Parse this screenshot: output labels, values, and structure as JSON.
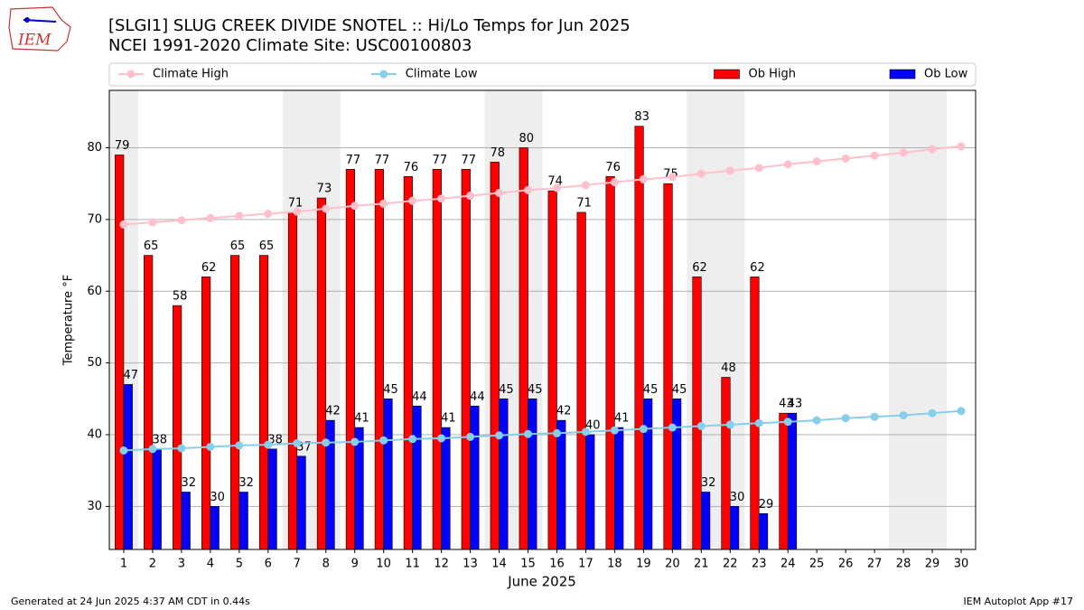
{
  "chart_data": {
    "type": "bar",
    "title": "[SLGI1] SLUG CREEK DIVIDE SNOTEL :: Hi/Lo Temps for Jun 2025",
    "subtitle": "NCEI 1991-2020 Climate Site: USC00100803",
    "x_label": "June 2025",
    "y_label": "Temperature °F",
    "footer_left": "Generated at 24 Jun 2025 4:37 AM CDT in 0.44s",
    "footer_right": "IEM Autoplot App #17",
    "logo": "IEM",
    "categories": [
      "1",
      "2",
      "3",
      "4",
      "5",
      "6",
      "7",
      "8",
      "9",
      "10",
      "11",
      "12",
      "13",
      "14",
      "15",
      "16",
      "17",
      "18",
      "19",
      "20",
      "21",
      "22",
      "23",
      "24",
      "25",
      "26",
      "27",
      "28",
      "29",
      "30"
    ],
    "shaded_categories": [
      0,
      6,
      7,
      13,
      14,
      20,
      21,
      27,
      28
    ],
    "shade_color": "#eeeeee",
    "ylim": [
      24,
      88
    ],
    "yticks": [
      30,
      40,
      50,
      60,
      70,
      80
    ],
    "grid": true,
    "legend": "top",
    "series": [
      {
        "name": "Climate High",
        "type": "line",
        "color": "#ffc0cb",
        "values": [
          69.3,
          69.6,
          69.9,
          70.2,
          70.5,
          70.8,
          71.1,
          71.5,
          71.9,
          72.2,
          72.6,
          72.9,
          73.3,
          73.7,
          74.1,
          74.4,
          74.8,
          75.2,
          75.6,
          75.9,
          76.4,
          76.8,
          77.2,
          77.7,
          78.1,
          78.5,
          78.9,
          79.3,
          79.8,
          80.2
        ]
      },
      {
        "name": "Climate Low",
        "type": "line",
        "color": "#87ceeb",
        "values": [
          37.8,
          38.0,
          38.1,
          38.3,
          38.5,
          38.6,
          38.8,
          38.9,
          39.0,
          39.2,
          39.4,
          39.5,
          39.7,
          39.9,
          40.1,
          40.2,
          40.4,
          40.6,
          40.8,
          41.0,
          41.2,
          41.4,
          41.6,
          41.8,
          42.0,
          42.3,
          42.5,
          42.7,
          43.0,
          43.3
        ]
      },
      {
        "name": "Ob High",
        "type": "bar",
        "color": "#ff0000",
        "values": [
          79,
          65,
          58,
          62,
          65,
          65,
          71,
          73,
          77,
          77,
          76,
          77,
          77,
          78,
          80,
          74,
          71,
          76,
          83,
          75,
          62,
          48,
          62,
          43,
          null,
          null,
          null,
          null,
          null,
          null
        ]
      },
      {
        "name": "Ob Low",
        "type": "bar",
        "color": "#0000ff",
        "values": [
          47,
          38,
          32,
          30,
          32,
          38,
          37,
          42,
          41,
          45,
          44,
          41,
          44,
          45,
          45,
          42,
          40,
          41,
          45,
          45,
          32,
          30,
          29,
          43,
          null,
          null,
          null,
          null,
          null,
          null
        ]
      }
    ]
  }
}
